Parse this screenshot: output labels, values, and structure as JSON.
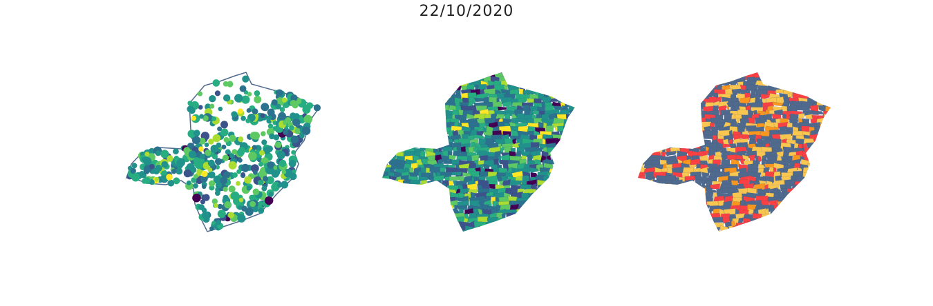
{
  "title": "22/10/2020",
  "panels": [
    {
      "name": "points",
      "style": "scatter"
    },
    {
      "name": "choropleth-viridis",
      "style": "fill"
    },
    {
      "name": "choropleth-categorical",
      "style": "fill"
    }
  ],
  "palettes": {
    "viridis": [
      "#440154",
      "#3b528b",
      "#2c728e",
      "#21918c",
      "#27ad81",
      "#5ec962",
      "#aadc32",
      "#fde725"
    ],
    "categorical": [
      "#4f6a8c",
      "#f94144",
      "#f9c74f",
      "#f8961e"
    ],
    "outline": "#4f6a8c"
  }
}
